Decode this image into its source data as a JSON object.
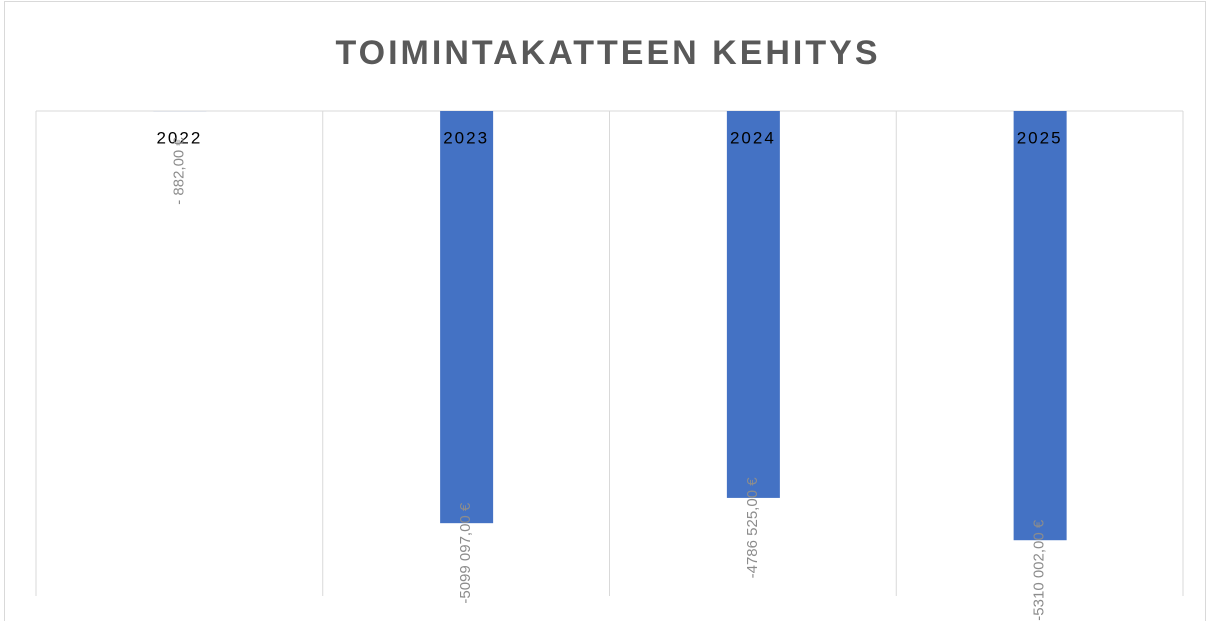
{
  "chart_data": {
    "type": "bar",
    "title": "TOIMINTAKATTEEN KEHITYS",
    "categories": [
      "2022",
      "2023",
      "2024",
      "2025"
    ],
    "values": [
      -882,
      -5099097,
      -4786525,
      -5310002
    ],
    "value_labels": [
      "- 882,00 €",
      "-5099 097,00 €",
      "-4786 525,00 €",
      "-5310 002,00 €"
    ],
    "color": "#4472c4",
    "ylim": [
      -6000000,
      0
    ]
  }
}
